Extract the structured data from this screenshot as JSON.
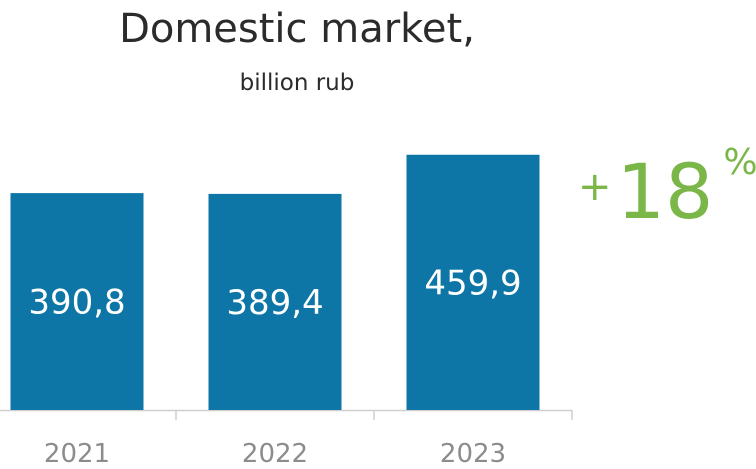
{
  "chart_data": {
    "type": "bar",
    "title": "Domestic market,",
    "subtitle": "billion rub",
    "categories": [
      "2021",
      "2022",
      "2023"
    ],
    "values": [
      390.8,
      389.4,
      459.9
    ],
    "value_labels": [
      "390,8",
      "389,4",
      "459,9"
    ],
    "bar_color": "#0e76a6",
    "label_color": "#ffffff",
    "axis_color": "#cfcfcf",
    "tick_label_color": "#8c8c8c",
    "annotation": {
      "plus": "+",
      "value": "18",
      "unit": "%",
      "color": "#7ab648"
    },
    "grid": false,
    "legend": "none"
  }
}
